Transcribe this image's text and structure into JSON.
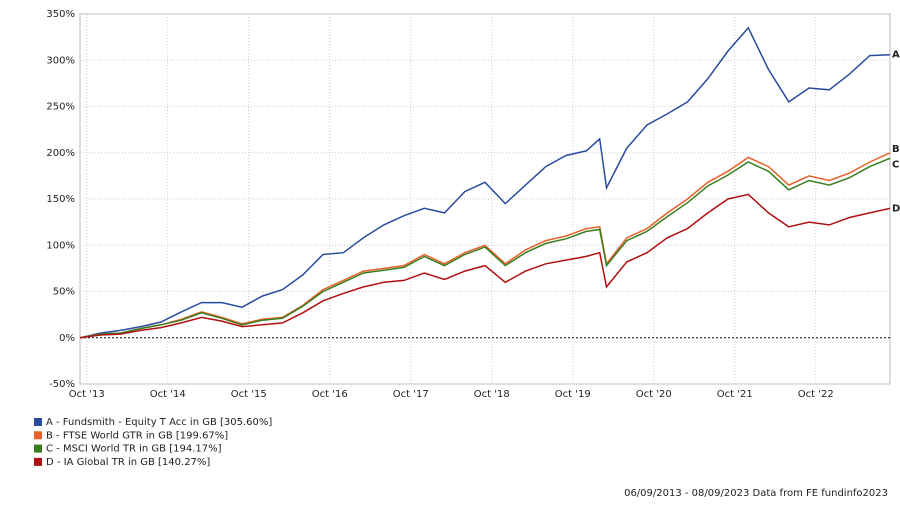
{
  "chart_data": {
    "type": "line",
    "x": [
      "2013-09",
      "2013-12",
      "2014-03",
      "2014-06",
      "2014-09",
      "2014-12",
      "2015-03",
      "2015-06",
      "2015-09",
      "2015-12",
      "2016-03",
      "2016-06",
      "2016-09",
      "2016-12",
      "2017-03",
      "2017-06",
      "2017-09",
      "2017-12",
      "2018-03",
      "2018-06",
      "2018-09",
      "2018-12",
      "2019-03",
      "2019-06",
      "2019-09",
      "2019-12",
      "2020-02",
      "2020-03",
      "2020-06",
      "2020-09",
      "2020-12",
      "2021-03",
      "2021-06",
      "2021-09",
      "2021-12",
      "2022-03",
      "2022-06",
      "2022-09",
      "2022-12",
      "2023-03",
      "2023-06",
      "2023-09"
    ],
    "series": [
      {
        "name": "A - Fundsmith - Equity T Acc in GB [305.60%]",
        "label": "A",
        "color": "#2b4ba0",
        "values": [
          0,
          5,
          8,
          12,
          17,
          28,
          38,
          38,
          33,
          45,
          52,
          68,
          90,
          92,
          108,
          122,
          132,
          140,
          135,
          158,
          168,
          145,
          165,
          185,
          197,
          202,
          215,
          162,
          205,
          230,
          242,
          255,
          280,
          310,
          335,
          290,
          255,
          270,
          268,
          285,
          305,
          306
        ]
      },
      {
        "name": "B - FTSE World GTR in GB [199.67%]",
        "label": "B",
        "color": "#e8602a",
        "values": [
          0,
          4,
          5,
          10,
          14,
          20,
          28,
          22,
          15,
          20,
          22,
          35,
          52,
          62,
          72,
          75,
          78,
          90,
          80,
          92,
          100,
          80,
          95,
          105,
          110,
          118,
          120,
          80,
          108,
          118,
          135,
          150,
          168,
          180,
          195,
          185,
          165,
          175,
          170,
          178,
          190,
          200
        ]
      },
      {
        "name": "C - MSCI World TR in GB [194.17%]",
        "label": "C",
        "color": "#3a7d1e",
        "values": [
          0,
          4,
          5,
          10,
          14,
          19,
          27,
          21,
          14,
          19,
          21,
          34,
          50,
          60,
          70,
          73,
          76,
          88,
          78,
          90,
          98,
          78,
          92,
          102,
          107,
          115,
          117,
          78,
          105,
          115,
          131,
          146,
          164,
          176,
          190,
          180,
          160,
          170,
          165,
          173,
          185,
          194
        ]
      },
      {
        "name": "D - IA Global TR in GB [140.27%]",
        "label": "D",
        "color": "#b01010",
        "values": [
          0,
          3,
          4,
          8,
          11,
          16,
          22,
          18,
          12,
          14,
          16,
          27,
          40,
          48,
          55,
          60,
          62,
          70,
          63,
          72,
          78,
          60,
          72,
          80,
          84,
          88,
          92,
          55,
          82,
          92,
          108,
          118,
          135,
          150,
          155,
          135,
          120,
          125,
          122,
          130,
          135,
          140
        ]
      }
    ],
    "xlim": [
      "2013-09",
      "2023-09"
    ],
    "xticks": [
      {
        "value": "2013-10",
        "label": "Oct '13"
      },
      {
        "value": "2014-10",
        "label": "Oct '14"
      },
      {
        "value": "2015-10",
        "label": "Oct '15"
      },
      {
        "value": "2016-10",
        "label": "Oct '16"
      },
      {
        "value": "2017-10",
        "label": "Oct '17"
      },
      {
        "value": "2018-10",
        "label": "Oct '18"
      },
      {
        "value": "2019-10",
        "label": "Oct '19"
      },
      {
        "value": "2020-10",
        "label": "Oct '20"
      },
      {
        "value": "2021-10",
        "label": "Oct '21"
      },
      {
        "value": "2022-10",
        "label": "Oct '22"
      }
    ],
    "ylim": [
      -50,
      350
    ],
    "yticks": [
      {
        "value": -50,
        "label": "-50%"
      },
      {
        "value": 0,
        "label": "0%"
      },
      {
        "value": 50,
        "label": "50%"
      },
      {
        "value": 100,
        "label": "100%"
      },
      {
        "value": 150,
        "label": "150%"
      },
      {
        "value": 200,
        "label": "200%"
      },
      {
        "value": 250,
        "label": "250%"
      },
      {
        "value": 300,
        "label": "300%"
      },
      {
        "value": 350,
        "label": "350%"
      }
    ],
    "grid": true,
    "footer": "06/09/2013 - 08/09/2023 Data from FE fundinfo2023"
  }
}
